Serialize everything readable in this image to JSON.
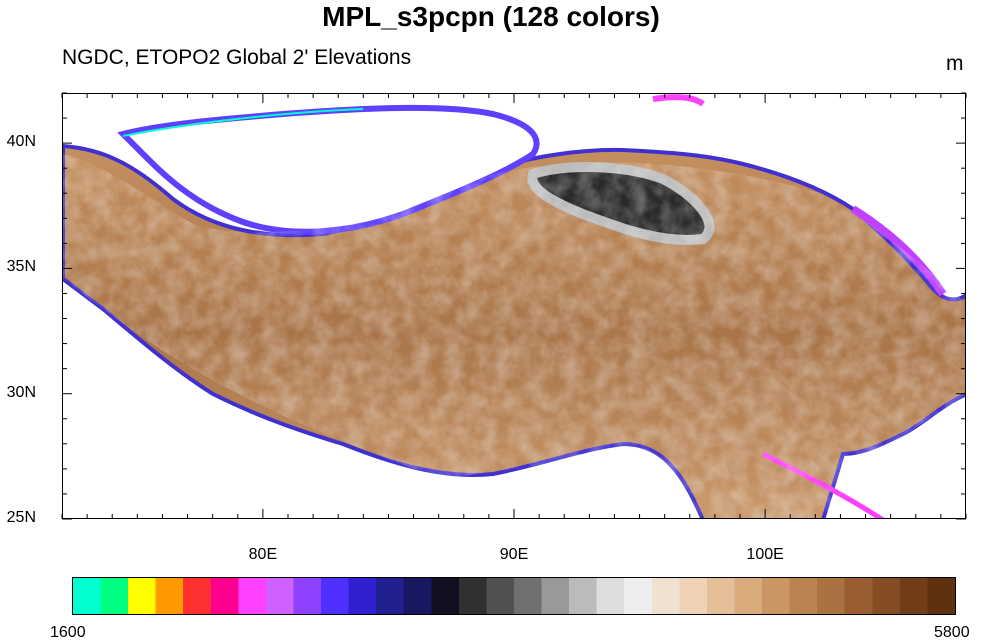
{
  "title": "MPL_s3pcpn (128 colors)",
  "subtitle_left": "NGDC, ETOPO2 Global 2' Elevations",
  "units": "m",
  "map": {
    "lon_range": [
      72,
      108
    ],
    "lat_range": [
      25,
      42
    ],
    "lat_ticks": [
      {
        "value": 40,
        "label": "40N"
      },
      {
        "value": 35,
        "label": "35N"
      },
      {
        "value": 30,
        "label": "30N"
      },
      {
        "value": 25,
        "label": "25N"
      }
    ],
    "lon_ticks": [
      {
        "value": 80,
        "label": "80E"
      },
      {
        "value": 90,
        "label": "90E"
      },
      {
        "value": 100,
        "label": "100E"
      }
    ]
  },
  "colorbar": {
    "min_label": "1600",
    "max_label": "5800",
    "colors": [
      "#00ffd0",
      "#00ff80",
      "#ffff00",
      "#ff9900",
      "#ff3030",
      "#ff0090",
      "#ff40ff",
      "#d060ff",
      "#9040ff",
      "#5030ff",
      "#3020d0",
      "#202090",
      "#181860",
      "#101020",
      "#303030",
      "#505050",
      "#707070",
      "#999999",
      "#bbbbbb",
      "#dddddd",
      "#eeeeee",
      "#f0e2d0",
      "#eed2b5",
      "#e4bf98",
      "#d8aa7c",
      "#ca9666",
      "#bb8352",
      "#aa7142",
      "#985e32",
      "#854d24",
      "#723e18",
      "#5f300e"
    ]
  }
}
